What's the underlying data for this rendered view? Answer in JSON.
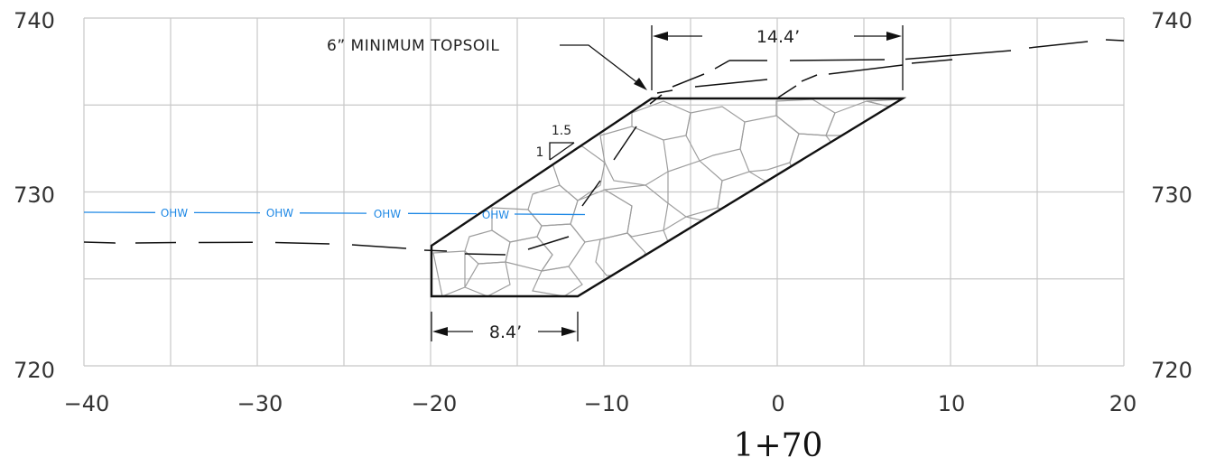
{
  "drawing": {
    "station": "1+70",
    "x_ticks": [
      "−40",
      "−30",
      "−20",
      "−10",
      "0",
      "10",
      "20"
    ],
    "y_ticks_left": [
      "740",
      "730",
      "720"
    ],
    "y_ticks_right": [
      "740",
      "730",
      "720"
    ],
    "annotations": {
      "topsoil_note": "6” MINIMUM TOPSOIL",
      "top_width": "14.4’",
      "bottom_width": "8.4’",
      "slope_h": "1.5",
      "slope_v": "1",
      "ohw_label": "OHW"
    },
    "colors": {
      "grid": "#c8c8c8",
      "ohw": "#1e88e5",
      "outline": "#111111",
      "rock": "#9e9e9e"
    }
  },
  "chart_data": {
    "type": "cross-section",
    "x_axis": {
      "range": [
        -40,
        20
      ],
      "ticks": [
        -40,
        -30,
        -20,
        -10,
        0,
        10,
        20
      ]
    },
    "y_axis": {
      "range": [
        720,
        740
      ],
      "ticks": [
        720,
        730,
        740
      ]
    },
    "grid": true,
    "riprap_section": {
      "outline": [
        [
          -20,
          724
        ],
        [
          -11.6,
          724
        ],
        [
          7.2,
          735.3
        ],
        [
          -7.2,
          735.3
        ],
        [
          -20,
          726.9
        ]
      ],
      "top_width_ft": 14.4,
      "bottom_width_ft": 8.4,
      "side_slope": "1.5:1"
    },
    "ohw_line": [
      [
        -40,
        728.8
      ],
      [
        -12,
        728.6
      ]
    ],
    "existing_ground": [
      [
        -40,
        727.1
      ],
      [
        -20,
        726.7
      ],
      [
        -11.5,
        727.8
      ],
      [
        -7.5,
        735
      ],
      [
        -3,
        737.6
      ],
      [
        9,
        737.6
      ],
      [
        20,
        738.8
      ]
    ],
    "proposed_surface": [
      [
        -7,
        735.6
      ],
      [
        10,
        737.8
      ]
    ]
  }
}
